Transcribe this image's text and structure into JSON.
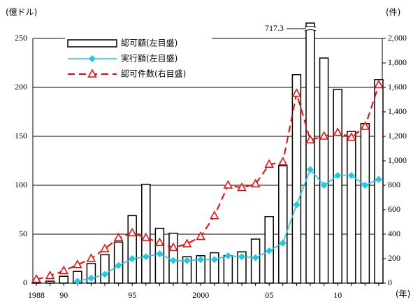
{
  "chart_data": {
    "type": "bar-line",
    "y_label": "(億ドル)",
    "y2_label": "(件)",
    "x_label": "(年)",
    "categories": [
      "1988",
      null,
      "90",
      null,
      null,
      null,
      null,
      "95",
      null,
      null,
      null,
      null,
      "2000",
      null,
      null,
      null,
      null,
      "05",
      null,
      null,
      null,
      null,
      "10",
      null,
      null,
      null
    ],
    "series": [
      {
        "name": "認可額(左目盛)",
        "type": "bar",
        "color": "#000000",
        "values": [
          0.5,
          2,
          7,
          12,
          20,
          29,
          42,
          69,
          101,
          56,
          51,
          27,
          28,
          31,
          28,
          32,
          45,
          68,
          120,
          213,
          717.3,
          230,
          198,
          155,
          163,
          208
        ]
      },
      {
        "name": "実行額(左目盛)",
        "type": "line",
        "color": "#1ec8ea",
        "values": [
          null,
          null,
          null,
          2,
          5,
          9,
          18,
          25,
          27,
          30,
          23,
          23,
          24,
          24,
          28,
          27,
          26,
          33,
          41,
          80,
          116,
          100,
          110,
          110,
          100,
          106
        ]
      },
      {
        "name": "認可件数(右目盛)",
        "type": "line",
        "axis": "y2",
        "color": "#ff0000",
        "values": [
          30,
          60,
          100,
          150,
          200,
          280,
          370,
          410,
          370,
          330,
          290,
          320,
          380,
          550,
          800,
          780,
          810,
          970,
          990,
          1550,
          1170,
          1200,
          1230,
          1190,
          1280,
          1620
        ]
      }
    ],
    "ylim": [
      0,
      250
    ],
    "yticks": [
      0,
      50,
      100,
      150,
      200,
      250
    ],
    "y2lim": [
      0,
      2000
    ],
    "y2ticks": [
      0,
      200,
      400,
      600,
      800,
      {
        "value": 1000,
        "label": "1,000"
      },
      {
        "value": 1200,
        "label": "1,200"
      },
      {
        "value": 1400,
        "label": "1,400"
      },
      {
        "value": 1600,
        "label": "1,600"
      },
      {
        "value": 1800,
        "label": "1,800"
      },
      {
        "value": 2000,
        "label": "2,000"
      }
    ],
    "grid": true,
    "legend": "upper left"
  }
}
